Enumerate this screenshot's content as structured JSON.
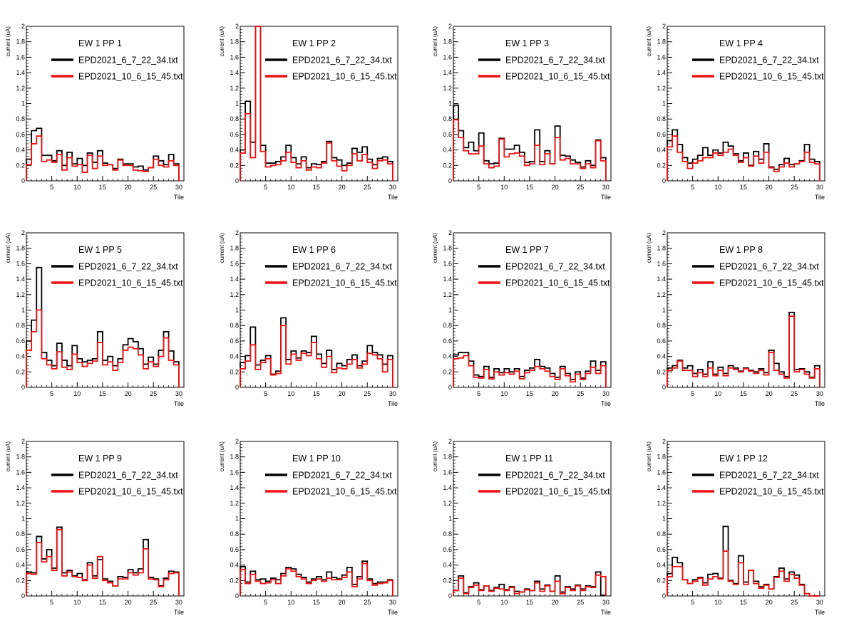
{
  "colors": {
    "series_1": "#000000",
    "series_2": "#ee1111",
    "axes": "#000000",
    "background": "#ffffff"
  },
  "chart_data": [
    {
      "type": "line",
      "step": true,
      "title": "EW 1 PP 1",
      "xlabel": "Tile",
      "ylabel": "current (uA)",
      "xlim": [
        0,
        31
      ],
      "ylim": [
        0,
        2
      ],
      "legend": [
        "EPD2021_6_7_22_34.txt",
        "EPD2021_10_6_15_45.txt"
      ],
      "series": [
        {
          "name": "EPD2021_6_7_22_34.txt",
          "values": [
            0.28,
            0.65,
            0.68,
            0.33,
            0.33,
            0.26,
            0.39,
            0.2,
            0.37,
            0.22,
            0.29,
            0.2,
            0.36,
            0.24,
            0.39,
            0.23,
            0.21,
            0.16,
            0.28,
            0.22,
            0.22,
            0.18,
            0.19,
            0.14,
            0.17,
            0.32,
            0.26,
            0.21,
            0.34,
            0.22
          ]
        },
        {
          "name": "EPD2021_10_6_15_45.txt",
          "values": [
            0.21,
            0.48,
            0.58,
            0.25,
            0.27,
            0.24,
            0.34,
            0.14,
            0.3,
            0.19,
            0.21,
            0.11,
            0.33,
            0.16,
            0.32,
            0.2,
            0.21,
            0.14,
            0.27,
            0.2,
            0.2,
            0.14,
            0.13,
            0.12,
            0.17,
            0.28,
            0.2,
            0.18,
            0.26,
            0.2
          ]
        }
      ]
    },
    {
      "type": "line",
      "step": true,
      "title": "EW 1 PP 2",
      "xlabel": "Tile",
      "ylabel": "current (uA)",
      "xlim": [
        0,
        31
      ],
      "ylim": [
        0,
        2
      ],
      "legend": [
        "EPD2021_6_7_22_34.txt",
        "EPD2021_10_6_15_45.txt"
      ],
      "series": [
        {
          "name": "EPD2021_6_7_22_34.txt",
          "values": [
            0.4,
            1.03,
            0.5,
            2.0,
            0.46,
            0.23,
            0.23,
            0.25,
            0.31,
            0.46,
            0.3,
            0.22,
            0.31,
            0.17,
            0.22,
            0.21,
            0.25,
            0.51,
            0.3,
            0.27,
            0.2,
            0.23,
            0.42,
            0.37,
            0.44,
            0.28,
            0.21,
            0.29,
            0.31,
            0.25
          ]
        },
        {
          "name": "EPD2021_10_6_15_45.txt",
          "values": [
            0.36,
            0.87,
            0.3,
            2.0,
            0.38,
            0.18,
            0.2,
            0.21,
            0.26,
            0.37,
            0.24,
            0.17,
            0.26,
            0.14,
            0.18,
            0.17,
            0.23,
            0.49,
            0.26,
            0.19,
            0.13,
            0.2,
            0.35,
            0.26,
            0.34,
            0.24,
            0.16,
            0.26,
            0.27,
            0.22
          ]
        }
      ]
    },
    {
      "type": "line",
      "step": true,
      "title": "EW 1 PP 3",
      "xlabel": "Tile",
      "ylabel": "current (uA)",
      "xlim": [
        0,
        31
      ],
      "ylim": [
        0,
        2
      ],
      "legend": [
        "EPD2021_6_7_22_34.txt",
        "EPD2021_10_6_15_45.txt"
      ],
      "series": [
        {
          "name": "EPD2021_6_7_22_34.txt",
          "values": [
            0.98,
            0.65,
            0.43,
            0.5,
            0.39,
            0.62,
            0.26,
            0.22,
            0.23,
            0.55,
            0.41,
            0.41,
            0.46,
            0.37,
            0.24,
            0.25,
            0.66,
            0.25,
            0.39,
            0.22,
            0.71,
            0.33,
            0.32,
            0.27,
            0.24,
            0.18,
            0.26,
            0.2,
            0.53,
            0.3
          ]
        },
        {
          "name": "EPD2021_10_6_15_45.txt",
          "values": [
            0.79,
            0.56,
            0.39,
            0.35,
            0.35,
            0.45,
            0.22,
            0.17,
            0.19,
            0.54,
            0.31,
            0.35,
            0.36,
            0.32,
            0.2,
            0.22,
            0.46,
            0.21,
            0.35,
            0.22,
            0.56,
            0.27,
            0.29,
            0.22,
            0.22,
            0.16,
            0.22,
            0.17,
            0.52,
            0.26
          ]
        }
      ]
    },
    {
      "type": "line",
      "step": true,
      "title": "EW 1 PP 4",
      "xlabel": "Tile",
      "ylabel": "current (uA)",
      "xlim": [
        0,
        31
      ],
      "ylim": [
        0,
        2
      ],
      "legend": [
        "EPD2021_6_7_22_34.txt",
        "EPD2021_10_6_15_45.txt"
      ],
      "series": [
        {
          "name": "EPD2021_6_7_22_34.txt",
          "values": [
            0.52,
            0.66,
            0.47,
            0.3,
            0.23,
            0.28,
            0.33,
            0.43,
            0.33,
            0.4,
            0.36,
            0.5,
            0.45,
            0.35,
            0.26,
            0.36,
            0.2,
            0.38,
            0.28,
            0.48,
            0.18,
            0.15,
            0.21,
            0.29,
            0.21,
            0.22,
            0.26,
            0.47,
            0.28,
            0.25
          ]
        },
        {
          "name": "EPD2021_10_6_15_45.txt",
          "values": [
            0.44,
            0.58,
            0.37,
            0.25,
            0.16,
            0.23,
            0.26,
            0.3,
            0.3,
            0.36,
            0.33,
            0.37,
            0.41,
            0.33,
            0.24,
            0.3,
            0.19,
            0.32,
            0.23,
            0.37,
            0.17,
            0.12,
            0.18,
            0.23,
            0.18,
            0.22,
            0.25,
            0.37,
            0.24,
            0.22
          ]
        }
      ]
    },
    {
      "type": "line",
      "step": true,
      "title": "EW 1 PP 5",
      "xlabel": "Tile",
      "ylabel": "current (uA)",
      "xlim": [
        0,
        31
      ],
      "ylim": [
        0,
        2
      ],
      "legend": [
        "EPD2021_6_7_22_34.txt",
        "EPD2021_10_6_15_45.txt"
      ],
      "series": [
        {
          "name": "EPD2021_6_7_22_34.txt",
          "values": [
            0.6,
            0.87,
            1.55,
            0.45,
            0.35,
            0.28,
            0.57,
            0.35,
            0.28,
            0.54,
            0.37,
            0.33,
            0.35,
            0.37,
            0.72,
            0.35,
            0.4,
            0.28,
            0.37,
            0.55,
            0.63,
            0.59,
            0.5,
            0.3,
            0.39,
            0.3,
            0.48,
            0.72,
            0.47,
            0.33
          ]
        },
        {
          "name": "EPD2021_10_6_15_45.txt",
          "values": [
            0.48,
            0.72,
            1.0,
            0.37,
            0.29,
            0.24,
            0.46,
            0.26,
            0.23,
            0.43,
            0.32,
            0.27,
            0.31,
            0.34,
            0.58,
            0.29,
            0.33,
            0.22,
            0.32,
            0.48,
            0.52,
            0.5,
            0.42,
            0.24,
            0.33,
            0.27,
            0.4,
            0.64,
            0.35,
            0.29
          ]
        }
      ]
    },
    {
      "type": "line",
      "step": true,
      "title": "EW 1 PP 6",
      "xlabel": "Tile",
      "ylabel": "current (uA)",
      "xlim": [
        0,
        31
      ],
      "ylim": [
        0,
        2
      ],
      "legend": [
        "EPD2021_6_7_22_34.txt",
        "EPD2021_10_6_15_45.txt"
      ],
      "series": [
        {
          "name": "EPD2021_6_7_22_34.txt",
          "values": [
            0.32,
            0.41,
            0.78,
            0.29,
            0.35,
            0.41,
            0.17,
            0.21,
            0.9,
            0.36,
            0.47,
            0.38,
            0.47,
            0.45,
            0.66,
            0.43,
            0.31,
            0.48,
            0.23,
            0.31,
            0.28,
            0.36,
            0.42,
            0.28,
            0.34,
            0.54,
            0.45,
            0.42,
            0.3,
            0.41
          ]
        },
        {
          "name": "EPD2021_10_6_15_45.txt",
          "values": [
            0.24,
            0.34,
            0.55,
            0.23,
            0.32,
            0.37,
            0.16,
            0.18,
            0.8,
            0.3,
            0.43,
            0.35,
            0.44,
            0.41,
            0.58,
            0.37,
            0.26,
            0.4,
            0.19,
            0.25,
            0.24,
            0.3,
            0.36,
            0.25,
            0.3,
            0.44,
            0.42,
            0.37,
            0.2,
            0.36
          ]
        }
      ]
    },
    {
      "type": "line",
      "step": true,
      "title": "EW 1 PP 7",
      "xlabel": "Tile",
      "ylabel": "current (uA)",
      "xlim": [
        0,
        31
      ],
      "ylim": [
        0,
        2
      ],
      "legend": [
        "EPD2021_6_7_22_34.txt",
        "EPD2021_10_6_15_45.txt"
      ],
      "series": [
        {
          "name": "EPD2021_6_7_22_34.txt",
          "values": [
            0.42,
            0.45,
            0.45,
            0.34,
            0.16,
            0.14,
            0.27,
            0.13,
            0.24,
            0.19,
            0.24,
            0.2,
            0.24,
            0.14,
            0.22,
            0.25,
            0.36,
            0.27,
            0.25,
            0.18,
            0.13,
            0.27,
            0.18,
            0.1,
            0.2,
            0.12,
            0.21,
            0.34,
            0.22,
            0.33
          ]
        },
        {
          "name": "EPD2021_10_6_15_45.txt",
          "values": [
            0.37,
            0.38,
            0.41,
            0.28,
            0.13,
            0.12,
            0.23,
            0.11,
            0.2,
            0.16,
            0.19,
            0.17,
            0.21,
            0.11,
            0.19,
            0.22,
            0.27,
            0.24,
            0.21,
            0.14,
            0.1,
            0.24,
            0.15,
            0.07,
            0.17,
            0.1,
            0.18,
            0.26,
            0.18,
            0.28
          ]
        }
      ]
    },
    {
      "type": "line",
      "step": true,
      "title": "EW 1 PP 8",
      "xlabel": "Tile",
      "ylabel": "current (uA)",
      "xlim": [
        0,
        31
      ],
      "ylim": [
        0,
        2
      ],
      "legend": [
        "EPD2021_6_7_22_34.txt",
        "EPD2021_10_6_15_45.txt"
      ],
      "series": [
        {
          "name": "EPD2021_6_7_22_34.txt",
          "values": [
            0.25,
            0.28,
            0.35,
            0.25,
            0.28,
            0.18,
            0.23,
            0.17,
            0.33,
            0.17,
            0.26,
            0.18,
            0.28,
            0.25,
            0.21,
            0.25,
            0.22,
            0.2,
            0.24,
            0.19,
            0.48,
            0.31,
            0.2,
            0.14,
            0.97,
            0.23,
            0.24,
            0.2,
            0.13,
            0.28
          ]
        },
        {
          "name": "EPD2021_10_6_15_45.txt",
          "values": [
            0.22,
            0.25,
            0.34,
            0.22,
            0.22,
            0.14,
            0.19,
            0.14,
            0.25,
            0.15,
            0.22,
            0.15,
            0.25,
            0.23,
            0.2,
            0.24,
            0.21,
            0.18,
            0.22,
            0.16,
            0.45,
            0.22,
            0.17,
            0.12,
            0.92,
            0.2,
            0.23,
            0.17,
            0.12,
            0.24
          ]
        }
      ]
    },
    {
      "type": "line",
      "step": true,
      "title": "EW 1 PP 9",
      "xlabel": "Tile",
      "ylabel": "current (uA)",
      "xlim": [
        0,
        31
      ],
      "ylim": [
        0,
        2
      ],
      "legend": [
        "EPD2021_6_7_22_34.txt",
        "EPD2021_10_6_15_45.txt"
      ],
      "series": [
        {
          "name": "EPD2021_6_7_22_34.txt",
          "values": [
            0.31,
            0.3,
            0.77,
            0.48,
            0.6,
            0.36,
            0.89,
            0.3,
            0.33,
            0.26,
            0.29,
            0.21,
            0.43,
            0.26,
            0.47,
            0.22,
            0.19,
            0.13,
            0.25,
            0.24,
            0.34,
            0.3,
            0.35,
            0.73,
            0.24,
            0.22,
            0.13,
            0.23,
            0.32,
            0.31
          ]
        },
        {
          "name": "EPD2021_10_6_15_45.txt",
          "values": [
            0.29,
            0.28,
            0.69,
            0.44,
            0.51,
            0.33,
            0.86,
            0.26,
            0.31,
            0.25,
            0.24,
            0.2,
            0.4,
            0.23,
            0.51,
            0.2,
            0.17,
            0.13,
            0.22,
            0.22,
            0.3,
            0.27,
            0.3,
            0.61,
            0.22,
            0.21,
            0.12,
            0.21,
            0.29,
            0.3
          ]
        }
      ]
    },
    {
      "type": "line",
      "step": true,
      "title": "EW 1 PP 10",
      "xlabel": "Tile",
      "ylabel": "current (uA)",
      "xlim": [
        0,
        31
      ],
      "ylim": [
        0,
        2
      ],
      "legend": [
        "EPD2021_6_7_22_34.txt",
        "EPD2021_10_6_15_45.txt"
      ],
      "series": [
        {
          "name": "EPD2021_6_7_22_34.txt",
          "values": [
            0.38,
            0.18,
            0.32,
            0.21,
            0.22,
            0.19,
            0.23,
            0.21,
            0.29,
            0.37,
            0.35,
            0.28,
            0.24,
            0.18,
            0.22,
            0.25,
            0.21,
            0.31,
            0.24,
            0.22,
            0.27,
            0.37,
            0.15,
            0.25,
            0.45,
            0.22,
            0.16,
            0.18,
            0.18,
            0.21
          ]
        },
        {
          "name": "EPD2021_10_6_15_45.txt",
          "values": [
            0.34,
            0.16,
            0.28,
            0.19,
            0.16,
            0.17,
            0.21,
            0.16,
            0.26,
            0.35,
            0.32,
            0.25,
            0.22,
            0.16,
            0.2,
            0.22,
            0.19,
            0.23,
            0.21,
            0.21,
            0.24,
            0.31,
            0.12,
            0.22,
            0.42,
            0.2,
            0.14,
            0.16,
            0.17,
            0.2
          ]
        }
      ]
    },
    {
      "type": "line",
      "step": true,
      "title": "EW 1 PP 11",
      "xlabel": "Tile",
      "ylabel": "current (uA)",
      "xlim": [
        0,
        31
      ],
      "ylim": [
        0,
        2
      ],
      "legend": [
        "EPD2021_6_7_22_34.txt",
        "EPD2021_10_6_15_45.txt"
      ],
      "series": [
        {
          "name": "EPD2021_6_7_22_34.txt",
          "values": [
            0.07,
            0.26,
            0.04,
            0.12,
            0.17,
            0.08,
            0.13,
            0.07,
            0.11,
            0.15,
            0.08,
            0.12,
            0.06,
            0.05,
            0.09,
            0.07,
            0.19,
            0.09,
            0.14,
            0.06,
            0.26,
            0.05,
            0.12,
            0.09,
            0.14,
            0.09,
            0.13,
            0.12,
            0.31,
            0.01
          ]
        },
        {
          "name": "EPD2021_10_6_15_45.txt",
          "values": [
            0.07,
            0.23,
            0.03,
            0.11,
            0.14,
            0.07,
            0.13,
            0.06,
            0.1,
            0.09,
            0.07,
            0.11,
            0.03,
            0.05,
            0.08,
            0.07,
            0.17,
            0.06,
            0.13,
            0.06,
            0.19,
            0.03,
            0.11,
            0.07,
            0.13,
            0.07,
            0.12,
            0.11,
            0.27,
            0.25
          ]
        }
      ]
    },
    {
      "type": "line",
      "step": true,
      "title": "EW 1 PP 12",
      "xlabel": "Tile",
      "ylabel": "current (uA)",
      "xlim": [
        0,
        31
      ],
      "ylim": [
        0,
        2
      ],
      "legend": [
        "EPD2021_6_7_22_34.txt",
        "EPD2021_10_6_15_45.txt"
      ],
      "series": [
        {
          "name": "EPD2021_6_7_22_34.txt",
          "values": [
            0.29,
            0.5,
            0.43,
            0.21,
            0.16,
            0.21,
            0.24,
            0.17,
            0.28,
            0.29,
            0.23,
            0.9,
            0.2,
            0.16,
            0.52,
            0.18,
            0.33,
            0.19,
            0.12,
            0.15,
            0.09,
            0.25,
            0.36,
            0.22,
            0.31,
            0.27,
            0.15,
            0.03,
            0.0,
            0.0
          ]
        },
        {
          "name": "EPD2021_10_6_15_45.txt",
          "values": [
            0.25,
            0.38,
            0.38,
            0.21,
            0.16,
            0.19,
            0.23,
            0.14,
            0.22,
            0.25,
            0.22,
            0.58,
            0.19,
            0.15,
            0.43,
            0.15,
            0.33,
            0.16,
            0.1,
            0.14,
            0.09,
            0.24,
            0.32,
            0.19,
            0.28,
            0.23,
            0.14,
            0.03,
            0.0,
            0.0
          ]
        }
      ]
    }
  ]
}
